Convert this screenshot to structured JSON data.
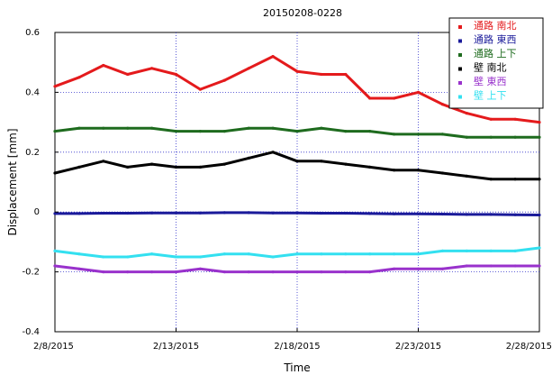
{
  "chart_data": {
    "type": "line",
    "title": "20150208-0228",
    "xlabel": "Time",
    "ylabel": "Displacement [mm]",
    "xlim": [
      "2015-02-08",
      "2015-02-28"
    ],
    "ylim": [
      -0.4,
      0.6
    ],
    "grid": true,
    "legend_position": "top-right",
    "x_ticks": [
      "2/8/2015",
      "2/13/2015",
      "2/18/2015",
      "2/23/2015",
      "2/28/2015"
    ],
    "x_tick_dates": [
      "2015-02-08",
      "2015-02-13",
      "2015-02-18",
      "2015-02-23",
      "2015-02-28"
    ],
    "y_ticks": [
      "0.6",
      "0.4",
      "0.2",
      "0",
      "-0.2",
      "-0.4"
    ],
    "y_tick_values": [
      0.6,
      0.4,
      0.2,
      0,
      -0.2,
      -0.4
    ],
    "x": [
      "2015-02-08",
      "2015-02-09",
      "2015-02-10",
      "2015-02-11",
      "2015-02-12",
      "2015-02-13",
      "2015-02-14",
      "2015-02-15",
      "2015-02-16",
      "2015-02-17",
      "2015-02-18",
      "2015-02-19",
      "2015-02-20",
      "2015-02-21",
      "2015-02-22",
      "2015-02-23",
      "2015-02-24",
      "2015-02-25",
      "2015-02-26",
      "2015-02-27",
      "2015-02-28"
    ],
    "series": [
      {
        "name": "通路 南北",
        "color": "#e41a1c",
        "values": [
          0.42,
          0.45,
          0.49,
          0.46,
          0.48,
          0.46,
          0.41,
          0.44,
          0.48,
          0.52,
          0.47,
          0.46,
          0.46,
          0.38,
          0.38,
          0.4,
          0.36,
          0.33,
          0.31,
          0.31,
          0.3
        ]
      },
      {
        "name": "通路 東西",
        "color": "#1a1a9a",
        "values": [
          -0.005,
          -0.005,
          -0.004,
          -0.004,
          -0.003,
          -0.003,
          -0.003,
          -0.002,
          -0.002,
          -0.003,
          -0.003,
          -0.004,
          -0.004,
          -0.005,
          -0.006,
          -0.006,
          -0.007,
          -0.008,
          -0.008,
          -0.009,
          -0.01
        ]
      },
      {
        "name": "通路 上下",
        "color": "#1e6b1e",
        "values": [
          0.27,
          0.28,
          0.28,
          0.28,
          0.28,
          0.27,
          0.27,
          0.27,
          0.28,
          0.28,
          0.27,
          0.28,
          0.27,
          0.27,
          0.26,
          0.26,
          0.26,
          0.25,
          0.25,
          0.25,
          0.25
        ]
      },
      {
        "name": "壁 南北",
        "color": "#000000",
        "values": [
          0.13,
          0.15,
          0.17,
          0.15,
          0.16,
          0.15,
          0.15,
          0.16,
          0.18,
          0.2,
          0.17,
          0.17,
          0.16,
          0.15,
          0.14,
          0.14,
          0.13,
          0.12,
          0.11,
          0.11,
          0.11
        ]
      },
      {
        "name": "壁 東西",
        "color": "#9932cc",
        "values": [
          -0.18,
          -0.19,
          -0.2,
          -0.2,
          -0.2,
          -0.2,
          -0.19,
          -0.2,
          -0.2,
          -0.2,
          -0.2,
          -0.2,
          -0.2,
          -0.2,
          -0.19,
          -0.19,
          -0.19,
          -0.18,
          -0.18,
          -0.18,
          -0.18
        ]
      },
      {
        "name": "壁 上下",
        "color": "#33e0f0",
        "values": [
          -0.13,
          -0.14,
          -0.15,
          -0.15,
          -0.14,
          -0.15,
          -0.15,
          -0.14,
          -0.14,
          -0.15,
          -0.14,
          -0.14,
          -0.14,
          -0.14,
          -0.14,
          -0.14,
          -0.13,
          -0.13,
          -0.13,
          -0.13,
          -0.12
        ]
      }
    ]
  }
}
